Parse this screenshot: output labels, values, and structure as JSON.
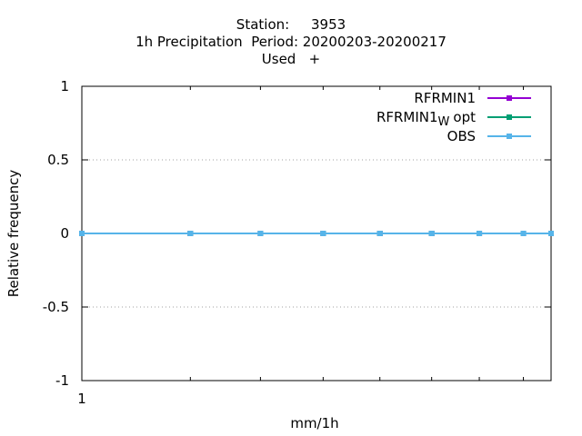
{
  "chart_data": {
    "type": "line",
    "title_lines": [
      "Station:     3953",
      "1h Precipitation  Period: 20200203-20200217",
      "Used   +"
    ],
    "xlabel": "mm/1h",
    "ylabel": "Relative frequency",
    "x_scale": "log",
    "xlim": [
      1,
      2.2
    ],
    "ylim": [
      -1,
      1
    ],
    "y_ticks": [
      "1",
      "0.5",
      "0",
      "-0.5",
      "-1"
    ],
    "x_tick_label": "1",
    "grid": "horizontal-dotted",
    "legend_position": "top-right",
    "x": [
      1,
      1.2,
      1.35,
      1.5,
      1.65,
      1.8,
      1.95,
      2.1,
      2.2
    ],
    "series": [
      {
        "name": "RFRMIN1",
        "name_sub": "",
        "name_suffix": "",
        "color": "#9400d3",
        "values": [
          0,
          0,
          0,
          0,
          0,
          0,
          0,
          0,
          0
        ]
      },
      {
        "name": "RFRMIN1",
        "name_sub": "W",
        "name_suffix": "opt",
        "color": "#009e73",
        "values": [
          0,
          0,
          0,
          0,
          0,
          0,
          0,
          0,
          0
        ]
      },
      {
        "name": "OBS",
        "name_sub": "",
        "name_suffix": "",
        "color": "#56b4e9",
        "values": [
          0,
          0,
          0,
          0,
          0,
          0,
          0,
          0,
          0
        ]
      }
    ]
  }
}
